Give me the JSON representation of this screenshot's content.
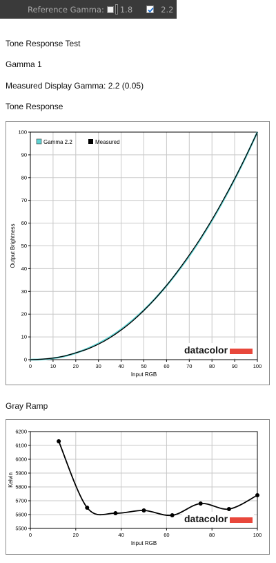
{
  "toolbar": {
    "label": "Reference Gamma:",
    "option1_value": "1.8",
    "option1_checked": false,
    "option2_value": "2.2",
    "option2_checked": true
  },
  "page": {
    "title": "Tone Response Test",
    "subtitle": "Gamma 1",
    "measured": "Measured Display Gamma: 2.2 (0.05)",
    "section1": "Tone Response",
    "section2": "Gray Ramp"
  },
  "colors": {
    "reference_line": "#5fd3d3",
    "measured_line": "#000000",
    "grid": "#c8c8c8",
    "brand_bar": "#e8473b"
  },
  "logo_text": "datacolor",
  "chart_data": [
    {
      "type": "line",
      "title": "Tone Response",
      "xlabel": "Input RGB",
      "ylabel": "Output Brightness",
      "xlim": [
        0,
        100
      ],
      "ylim": [
        0,
        100
      ],
      "x_ticks": [
        0,
        10,
        20,
        30,
        40,
        50,
        60,
        70,
        80,
        90,
        100
      ],
      "y_ticks": [
        0,
        10,
        20,
        30,
        40,
        50,
        60,
        70,
        80,
        90,
        100
      ],
      "grid": true,
      "legend_position": "top-left",
      "series": [
        {
          "name": "Gamma 2.2",
          "x": [
            0,
            5,
            10,
            15,
            20,
            25,
            30,
            35,
            40,
            45,
            50,
            55,
            60,
            65,
            70,
            75,
            80,
            85,
            90,
            95,
            100
          ],
          "y": [
            0,
            0.1,
            0.6,
            1.5,
            2.9,
            4.8,
            7.1,
            9.9,
            13.3,
            17.3,
            21.8,
            26.9,
            32.5,
            38.8,
            45.6,
            53.1,
            61.2,
            69.9,
            79.3,
            89.3,
            100
          ]
        },
        {
          "name": "Measured",
          "x": [
            0,
            5,
            10,
            15,
            20,
            25,
            30,
            35,
            40,
            45,
            50,
            55,
            60,
            65,
            70,
            75,
            80,
            85,
            90,
            95,
            100
          ],
          "y": [
            0,
            0.2,
            0.7,
            1.6,
            3.0,
            4.6,
            6.8,
            9.6,
            13.0,
            17.0,
            21.6,
            26.8,
            32.6,
            39.0,
            46.0,
            53.4,
            61.5,
            70.2,
            79.5,
            89.5,
            100
          ]
        }
      ]
    },
    {
      "type": "line",
      "title": "Gray Ramp",
      "xlabel": "Input RGB",
      "ylabel": "Kelvin",
      "xlim": [
        0,
        100
      ],
      "ylim": [
        5500,
        6200
      ],
      "x_ticks": [
        0,
        20,
        40,
        60,
        80,
        100
      ],
      "y_ticks": [
        5500,
        5600,
        5700,
        5800,
        5900,
        6000,
        6100,
        6200
      ],
      "grid": true,
      "series": [
        {
          "x": [
            12.5,
            25,
            37.5,
            50,
            62.5,
            75,
            87.5,
            100
          ],
          "y": [
            6130,
            5650,
            5610,
            5630,
            5595,
            5680,
            5640,
            5740
          ]
        }
      ]
    }
  ]
}
